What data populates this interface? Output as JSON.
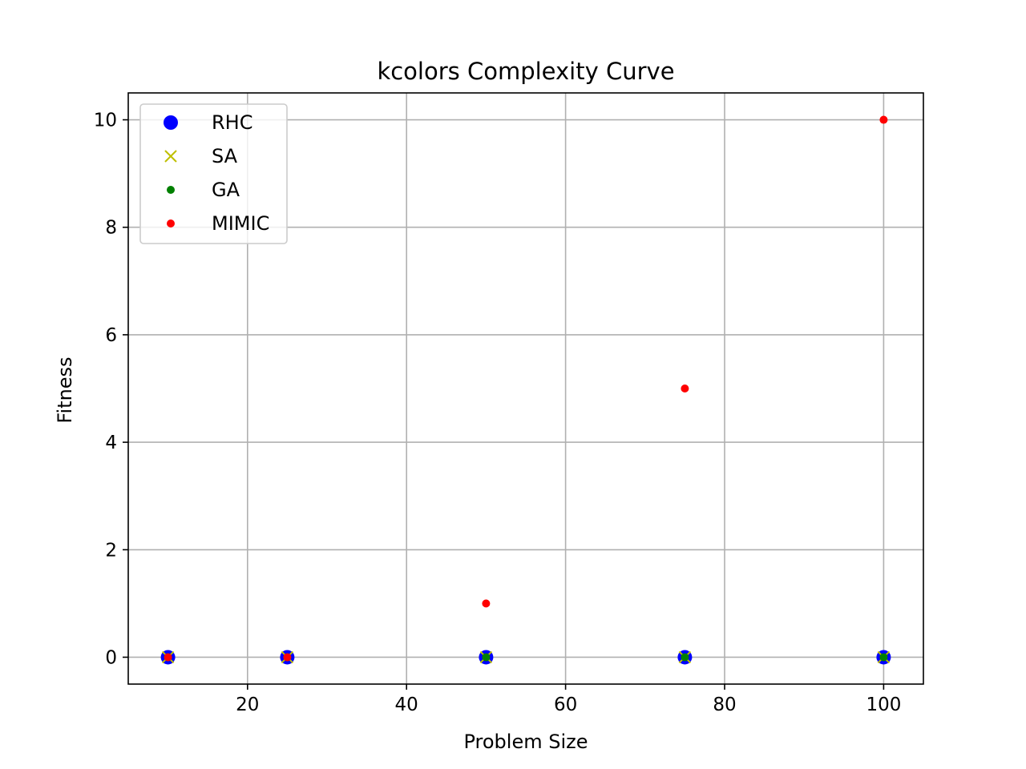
{
  "chart_data": {
    "type": "scatter",
    "title": "kcolors Complexity Curve",
    "xlabel": "Problem Size",
    "ylabel": "Fitness",
    "xlim": [
      5,
      105
    ],
    "ylim": [
      -0.5,
      10.5
    ],
    "xticks": [
      20,
      40,
      60,
      80,
      100
    ],
    "yticks": [
      0,
      2,
      4,
      6,
      8,
      10
    ],
    "grid": true,
    "legend_position": "upper-left",
    "series": [
      {
        "name": "RHC",
        "marker": "large-dot",
        "color": "#0000ff",
        "points": [
          [
            10,
            0
          ],
          [
            25,
            0
          ],
          [
            50,
            0
          ],
          [
            75,
            0
          ],
          [
            100,
            0
          ]
        ]
      },
      {
        "name": "SA",
        "marker": "x",
        "color": "#bfbf00",
        "points": [
          [
            10,
            0
          ],
          [
            25,
            0
          ],
          [
            50,
            0
          ],
          [
            75,
            0
          ],
          [
            100,
            0
          ]
        ]
      },
      {
        "name": "GA",
        "marker": "small-dot",
        "color": "#008000",
        "points": [
          [
            10,
            0
          ],
          [
            25,
            0
          ],
          [
            50,
            0
          ],
          [
            75,
            0
          ],
          [
            100,
            0
          ]
        ]
      },
      {
        "name": "MIMIC",
        "marker": "small-dot",
        "color": "#ff0000",
        "points": [
          [
            10,
            0
          ],
          [
            25,
            0
          ],
          [
            50,
            1
          ],
          [
            75,
            5
          ],
          [
            100,
            10
          ]
        ]
      }
    ]
  }
}
